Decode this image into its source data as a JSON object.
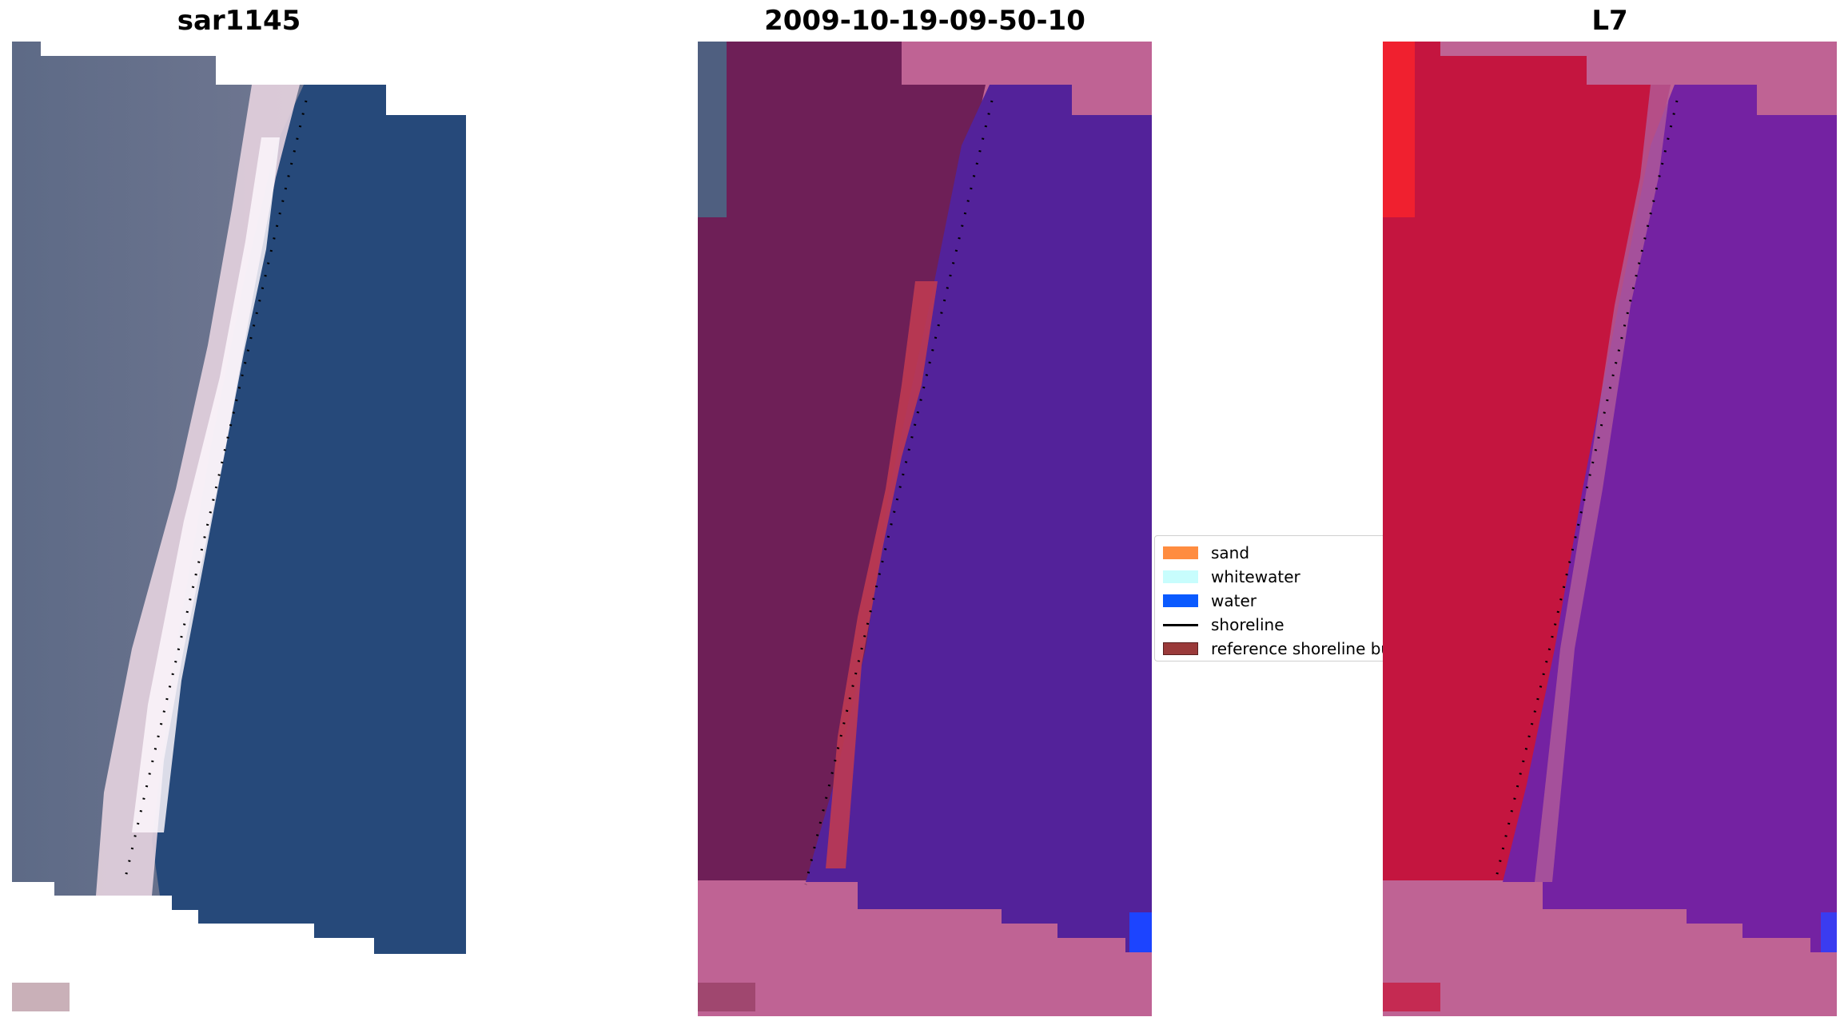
{
  "panels": [
    {
      "title": "sar1145",
      "image": "rgb-satellite-image"
    },
    {
      "title": "2009-10-19-09-50-10",
      "image": "classified-image"
    },
    {
      "title": "L7",
      "image": "mndwi-image"
    }
  ],
  "legend": {
    "items": [
      {
        "label": "sand",
        "color": "#ff8c40"
      },
      {
        "label": "whitewater",
        "color": "#c8fdfd"
      },
      {
        "label": "water",
        "color": "#0a5aff"
      },
      {
        "label": "shoreline",
        "color": "#000000",
        "kind": "line"
      },
      {
        "label": "reference shoreline buffer",
        "color": "#9a3a3a"
      }
    ]
  },
  "colors": {
    "land_rgb": "#5a6784",
    "water_rgb": "#264774",
    "beach_rgb": "#f0e0e8",
    "land_class": "#6e1f57",
    "water_class": "#53229a",
    "buffer_class": "#be3a52",
    "nodata": "#bf6394",
    "land_index": "#c4153f",
    "water_index": "#7422a2"
  }
}
